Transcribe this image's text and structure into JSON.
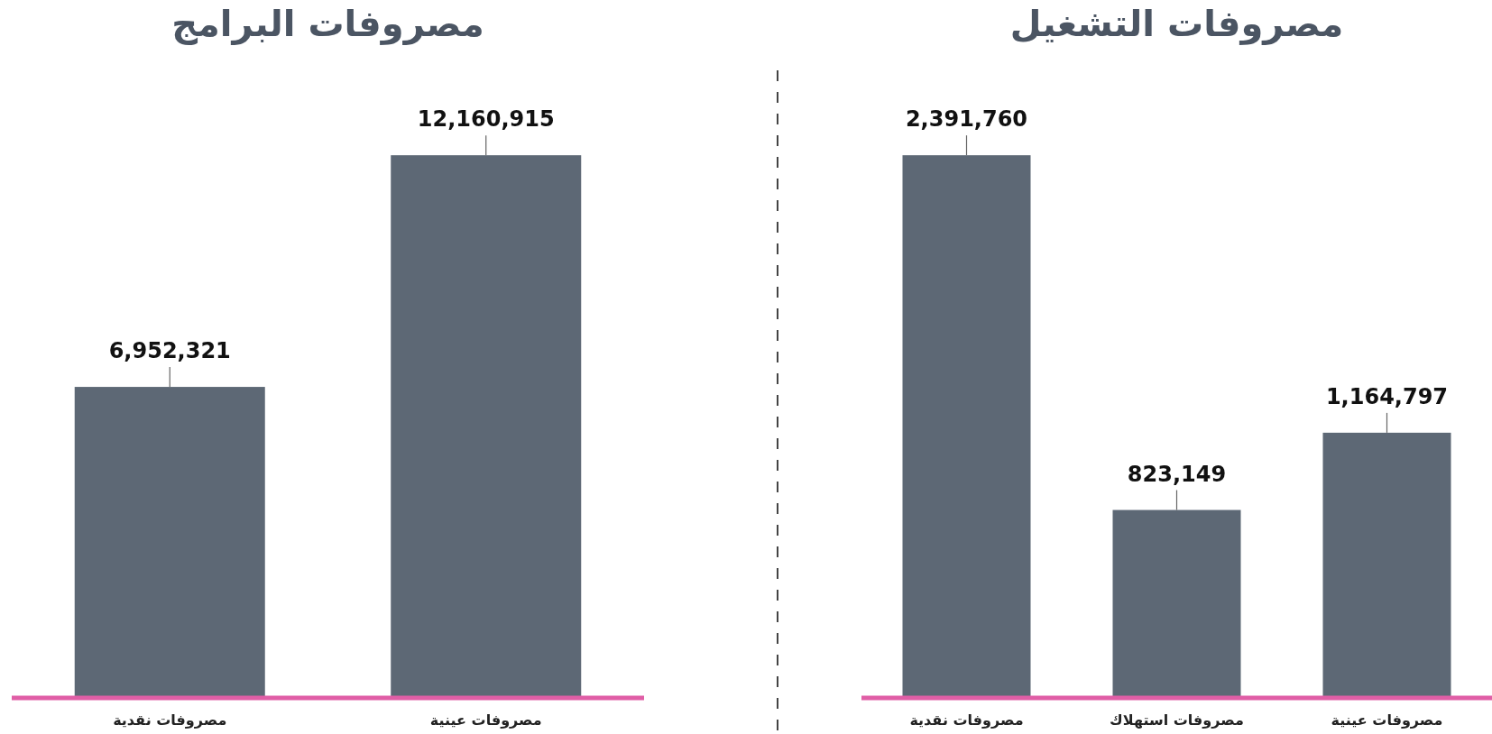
{
  "chart_data": [
    {
      "type": "bar",
      "title": "مصروفات التشغيل",
      "categories": [
        "مصروفات نقدية",
        "مصروفات استهلاك",
        "مصروفات عينية"
      ],
      "values": [
        2391760,
        823149,
        1164797
      ],
      "value_labels": [
        "2,391,760",
        "823,149",
        "1,164,797"
      ],
      "color": "#5d6875"
    },
    {
      "type": "bar",
      "title": "مصروفات البرامج",
      "categories": [
        "مصروفات نقدية",
        "مصروفات عينية"
      ],
      "values": [
        6952321,
        12160915
      ],
      "value_labels": [
        "6,952,321",
        "12,160,915"
      ],
      "color": "#5d6875"
    }
  ]
}
